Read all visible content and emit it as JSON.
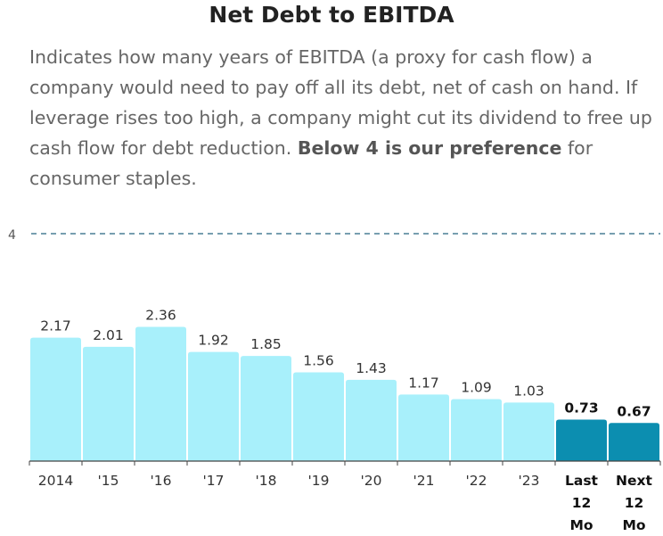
{
  "chart_data": {
    "type": "bar",
    "title": "Net Debt to EBITDA",
    "description": {
      "text_before": "Indicates how many years of EBITDA (a proxy for cash flow) a company would need to pay off all its debt, net of cash on hand. If leverage rises too high, a company might cut its dividend to free up cash flow for debt reduction. ",
      "emphasis": "Below 4 is our preference",
      "text_after": " for consumer staples."
    },
    "categories": [
      "2014",
      "'15",
      "'16",
      "'17",
      "'18",
      "'19",
      "'20",
      "'21",
      "'22",
      "'23",
      "Last 12 Mo",
      "Next 12 Mo"
    ],
    "values": [
      2.17,
      2.01,
      2.36,
      1.92,
      1.85,
      1.56,
      1.43,
      1.17,
      1.09,
      1.03,
      0.73,
      0.67
    ],
    "value_labels": [
      "2.17",
      "2.01",
      "2.36",
      "1.92",
      "1.85",
      "1.56",
      "1.43",
      "1.17",
      "1.09",
      "1.03",
      "0.73",
      "0.67"
    ],
    "highlighted": [
      false,
      false,
      false,
      false,
      false,
      false,
      false,
      false,
      false,
      false,
      true,
      true
    ],
    "reference_line": {
      "value": 4,
      "label": "4",
      "style": "dashed"
    },
    "ylim": [
      0,
      4
    ],
    "grid": false,
    "colors": {
      "bar": "#a8f0fb",
      "bar_highlight": "#0c8eb0",
      "reference_line": "#4a7f96",
      "axis": "#444444"
    }
  }
}
